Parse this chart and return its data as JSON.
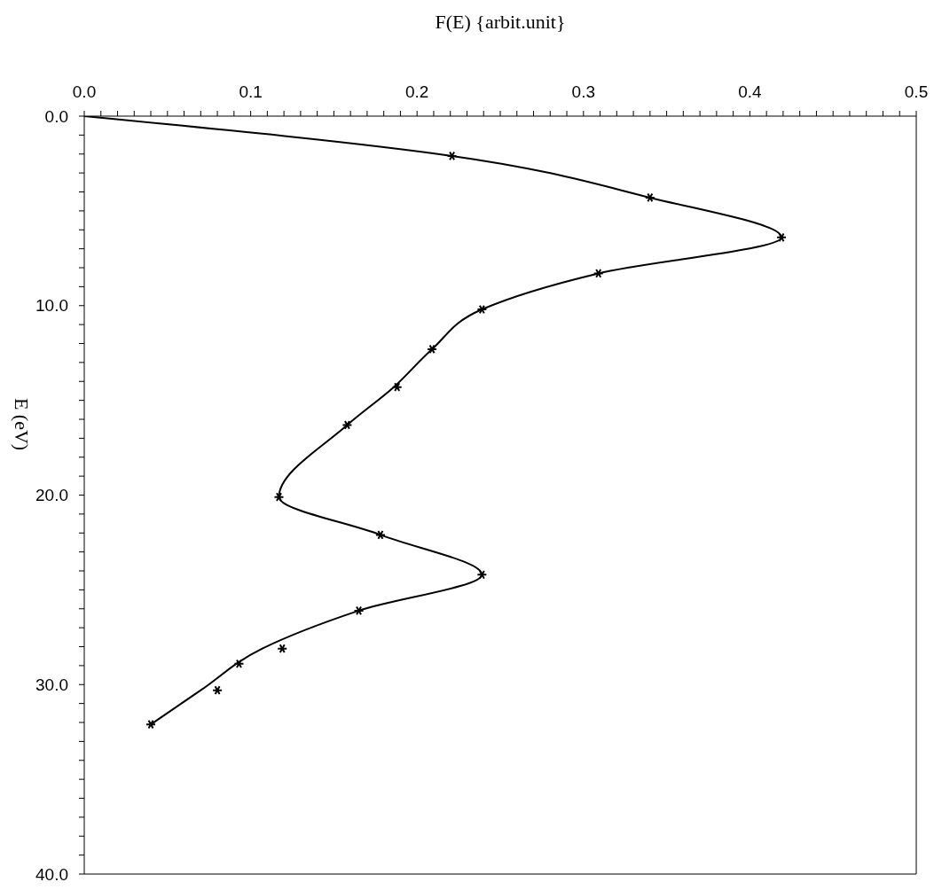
{
  "chart_data": {
    "type": "line",
    "xlabel": "F(E)     {arbit.unit}",
    "ylabel": "E (eV)",
    "xlim": [
      0,
      0.5
    ],
    "ylim": [
      40,
      0
    ],
    "xticks": [
      {
        "value": 0,
        "label": "0.0"
      },
      {
        "value": 0.01,
        "label": null
      },
      {
        "value": 0.02,
        "label": null
      },
      {
        "value": 0.03,
        "label": null
      },
      {
        "value": 0.04,
        "label": null
      },
      {
        "value": 0.05,
        "label": null
      },
      {
        "value": 0.06,
        "label": null
      },
      {
        "value": 0.07,
        "label": null
      },
      {
        "value": 0.08,
        "label": null
      },
      {
        "value": 0.09,
        "label": null
      },
      {
        "value": 0.1,
        "label": "0.1"
      },
      {
        "value": 0.11,
        "label": null
      },
      {
        "value": 0.12,
        "label": null
      },
      {
        "value": 0.13,
        "label": null
      },
      {
        "value": 0.14,
        "label": null
      },
      {
        "value": 0.15,
        "label": null
      },
      {
        "value": 0.16,
        "label": null
      },
      {
        "value": 0.17,
        "label": null
      },
      {
        "value": 0.18,
        "label": null
      },
      {
        "value": 0.19,
        "label": null
      },
      {
        "value": 0.2,
        "label": "0.2"
      },
      {
        "value": 0.21,
        "label": null
      },
      {
        "value": 0.22,
        "label": null
      },
      {
        "value": 0.23,
        "label": null
      },
      {
        "value": 0.24,
        "label": null
      },
      {
        "value": 0.25,
        "label": null
      },
      {
        "value": 0.26,
        "label": null
      },
      {
        "value": 0.27,
        "label": null
      },
      {
        "value": 0.28,
        "label": null
      },
      {
        "value": 0.29,
        "label": null
      },
      {
        "value": 0.3,
        "label": "0.3"
      },
      {
        "value": 0.31,
        "label": null
      },
      {
        "value": 0.32,
        "label": null
      },
      {
        "value": 0.33,
        "label": null
      },
      {
        "value": 0.34,
        "label": null
      },
      {
        "value": 0.35,
        "label": null
      },
      {
        "value": 0.36,
        "label": null
      },
      {
        "value": 0.37,
        "label": null
      },
      {
        "value": 0.38,
        "label": null
      },
      {
        "value": 0.39,
        "label": null
      },
      {
        "value": 0.4,
        "label": "0.4"
      },
      {
        "value": 0.41,
        "label": null
      },
      {
        "value": 0.42,
        "label": null
      },
      {
        "value": 0.43,
        "label": null
      },
      {
        "value": 0.44,
        "label": null
      },
      {
        "value": 0.45,
        "label": null
      },
      {
        "value": 0.46,
        "label": null
      },
      {
        "value": 0.47,
        "label": null
      },
      {
        "value": 0.48,
        "label": null
      },
      {
        "value": 0.49,
        "label": null
      },
      {
        "value": 0.5,
        "label": "0.5"
      }
    ],
    "yticks": [
      {
        "value": 0,
        "label": "0.0"
      },
      {
        "value": 1,
        "label": null
      },
      {
        "value": 2,
        "label": null
      },
      {
        "value": 3,
        "label": null
      },
      {
        "value": 4,
        "label": null
      },
      {
        "value": 5,
        "label": null
      },
      {
        "value": 6,
        "label": null
      },
      {
        "value": 7,
        "label": null
      },
      {
        "value": 8,
        "label": null
      },
      {
        "value": 9,
        "label": null
      },
      {
        "value": 10,
        "label": "10.0"
      },
      {
        "value": 11,
        "label": null
      },
      {
        "value": 12,
        "label": null
      },
      {
        "value": 13,
        "label": null
      },
      {
        "value": 14,
        "label": null
      },
      {
        "value": 15,
        "label": null
      },
      {
        "value": 16,
        "label": null
      },
      {
        "value": 17,
        "label": null
      },
      {
        "value": 18,
        "label": null
      },
      {
        "value": 19,
        "label": null
      },
      {
        "value": 20,
        "label": "20.0"
      },
      {
        "value": 21,
        "label": null
      },
      {
        "value": 22,
        "label": null
      },
      {
        "value": 23,
        "label": null
      },
      {
        "value": 24,
        "label": null
      },
      {
        "value": 25,
        "label": null
      },
      {
        "value": 26,
        "label": null
      },
      {
        "value": 27,
        "label": null
      },
      {
        "value": 28,
        "label": null
      },
      {
        "value": 29,
        "label": null
      },
      {
        "value": 30,
        "label": "30.0"
      },
      {
        "value": 31,
        "label": null
      },
      {
        "value": 32,
        "label": null
      },
      {
        "value": 33,
        "label": null
      },
      {
        "value": 34,
        "label": null
      },
      {
        "value": 35,
        "label": null
      },
      {
        "value": 36,
        "label": null
      },
      {
        "value": 37,
        "label": null
      },
      {
        "value": 38,
        "label": null
      },
      {
        "value": 39,
        "label": null
      },
      {
        "value": 40,
        "label": "40.0"
      }
    ],
    "series": [
      {
        "color": "#000000",
        "marker": "none",
        "line_style": "solid",
        "x": [
          0,
          0.221,
          0.34,
          0.419,
          0.309,
          0.239,
          0.209,
          0.186,
          0.158,
          0.117,
          0.178,
          0.239,
          0.165,
          0.107,
          0.07,
          0.04
        ],
        "values": [
          0,
          2.1,
          4.3,
          6.4,
          8.3,
          10.2,
          12.3,
          14.3,
          16.3,
          20.1,
          22.1,
          24.2,
          26.1,
          28.1,
          30.3,
          32.1
        ]
      },
      {
        "type": "scatter",
        "color": "#000000",
        "marker": "cross",
        "x": [
          0.221,
          0.34,
          0.419,
          0.309,
          0.239,
          0.209,
          0.188,
          0.158,
          0.117,
          0.178,
          0.239,
          0.165,
          0.119,
          0.093,
          0.08,
          0.04
        ],
        "values": [
          2.1,
          4.3,
          6.4,
          8.3,
          10.2,
          12.3,
          14.3,
          16.3,
          20.1,
          22.1,
          24.2,
          26.1,
          28.1,
          28.9,
          30.3,
          32.1
        ]
      }
    ]
  }
}
